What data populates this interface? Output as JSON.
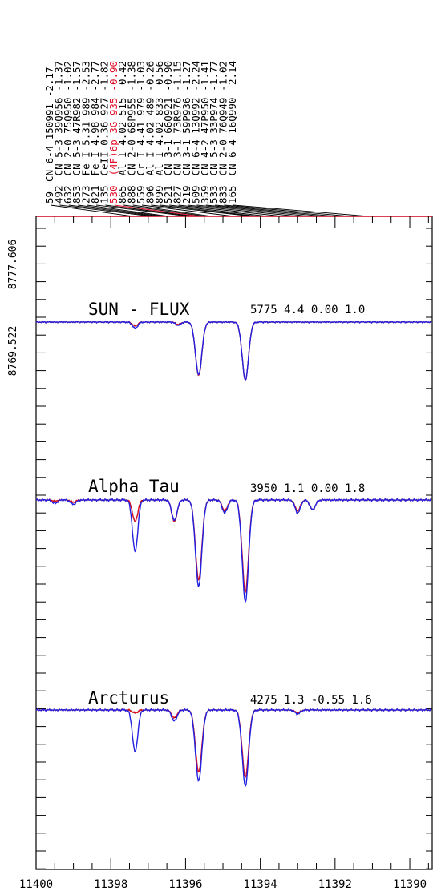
{
  "chart_data": {
    "type": "line",
    "x_axis": {
      "ticks": [
        "11400",
        "11398",
        "11396",
        "11394",
        "11392",
        "11390"
      ],
      "xlim": [
        11400,
        11389.4
      ],
      "reversed": true
    },
    "left_labels": [
      "8777.606",
      "8769.522"
    ],
    "line_list": [
      {
        "wl": 11397.4,
        "a": "59",
        "b": "CN 6-4 150991",
        "c": "-2.17",
        "red": false
      },
      {
        "wl": 11396.9,
        "a": "492",
        "b": "CN 5-3 39Q956",
        "c": "-1.37",
        "red": false
      },
      {
        "wl": 11396.75,
        "a": "632",
        "b": "CN 2-0 75Q950",
        "c": "-1.02",
        "red": false
      },
      {
        "wl": 11396.6,
        "a": "853",
        "b": "CN 5-3 47R982",
        "c": "-1.57",
        "red": false
      },
      {
        "wl": 11396.45,
        "a": "273",
        "b": "Fe I 5.31 989",
        "c": "-2.53",
        "red": false
      },
      {
        "wl": 11395.9,
        "a": "821",
        "b": "Fe I 4.98 984",
        "c": "-2.77",
        "red": false
      },
      {
        "wl": 11395.75,
        "a": "135",
        "b": "CeII 0.36 927",
        "c": "-1.82",
        "red": false
      },
      {
        "wl": 11395.6,
        "a": "530",
        "b": "(4F)6p 3G 935",
        "c": "-0.90",
        "red": true
      },
      {
        "wl": 11395.45,
        "a": "865",
        "b": "Al I 4.02 515",
        "c": "-0.42",
        "red": false
      },
      {
        "wl": 11395.3,
        "a": "888",
        "b": "CN 2-0 68P955",
        "c": "-1.38",
        "red": false
      },
      {
        "wl": 11394.7,
        "a": "559",
        "b": "Cr I 4.41 979",
        "c": "-1.03",
        "red": false
      },
      {
        "wl": 11394.2,
        "a": "896",
        "b": "Al I 4.02 489",
        "c": "-0.26",
        "red": false
      },
      {
        "wl": 11394.05,
        "a": "899",
        "b": "Al I 4.02 833",
        "c": "-0.56",
        "red": false
      },
      {
        "wl": 11393.8,
        "a": "521",
        "b": "CN 3-1 66Q921",
        "c": "-0.90",
        "red": false
      },
      {
        "wl": 11393.4,
        "a": "827",
        "b": "CN 3-1 73R976",
        "c": "-1.15",
        "red": false
      },
      {
        "wl": 11393.0,
        "a": "219",
        "b": "CN 3-1 59P936",
        "c": "-1.27",
        "red": false
      },
      {
        "wl": 11392.65,
        "a": "509",
        "b": "CN 6-4 13Q992",
        "c": "-2.24",
        "red": false
      },
      {
        "wl": 11392.3,
        "a": "359",
        "b": "CN 4-2 47P950",
        "c": "-1.41",
        "red": false
      },
      {
        "wl": 11392.0,
        "a": "533",
        "b": "CN 5-3 33P974",
        "c": "-1.77",
        "red": false
      },
      {
        "wl": 11391.6,
        "a": "833",
        "b": "CN 2-0 76Q949",
        "c": "-1.02",
        "red": false
      },
      {
        "wl": 11391.1,
        "a": "165",
        "b": "CN 6-4 16Q990",
        "c": "-2.14",
        "red": false
      }
    ],
    "panels": [
      {
        "name": "SUN - FLUX",
        "params": "5775 4.4  0.00 1.0",
        "continuum": 1.0,
        "lines": [
          {
            "wl": 11397.35,
            "observed": 0.92,
            "synthetic": 0.95
          },
          {
            "wl": 11396.2,
            "observed": 0.96,
            "synthetic": 0.97
          },
          {
            "wl": 11395.65,
            "observed": 0.31,
            "synthetic": 0.3
          },
          {
            "wl": 11394.4,
            "observed": 0.24,
            "synthetic": 0.24
          }
        ]
      },
      {
        "name": "Alpha Tau",
        "params": "3950 1.1  0.00 1.8",
        "continuum": 1.0,
        "lines": [
          {
            "wl": 11399.5,
            "observed": 0.97,
            "synthetic": 0.99
          },
          {
            "wl": 11399.0,
            "observed": 0.96,
            "synthetic": 0.98
          },
          {
            "wl": 11397.35,
            "observed": 0.52,
            "synthetic": 0.8
          },
          {
            "wl": 11396.3,
            "observed": 0.81,
            "synthetic": 0.8
          },
          {
            "wl": 11395.65,
            "observed": 0.2,
            "synthetic": 0.26
          },
          {
            "wl": 11394.95,
            "observed": 0.88,
            "synthetic": 0.9
          },
          {
            "wl": 11394.4,
            "observed": 0.06,
            "synthetic": 0.15
          },
          {
            "wl": 11393.0,
            "observed": 0.88,
            "synthetic": 0.9
          },
          {
            "wl": 11392.6,
            "observed": 0.91,
            "synthetic": 0.91
          }
        ]
      },
      {
        "name": "Arcturus",
        "params": "4275 1.3 -0.55 1.6",
        "continuum": 1.0,
        "lines": [
          {
            "wl": 11397.35,
            "observed": 0.58,
            "synthetic": 0.97
          },
          {
            "wl": 11396.3,
            "observed": 0.89,
            "synthetic": 0.92
          },
          {
            "wl": 11395.65,
            "observed": 0.29,
            "synthetic": 0.38
          },
          {
            "wl": 11394.4,
            "observed": 0.24,
            "synthetic": 0.33
          },
          {
            "wl": 11393.0,
            "observed": 0.96,
            "synthetic": 0.97
          }
        ]
      }
    ],
    "colors": {
      "observed": "#2020e0",
      "synthetic": "#e01020",
      "model": "#000000",
      "highlight": "#e0102a",
      "frame": "#000000"
    }
  }
}
